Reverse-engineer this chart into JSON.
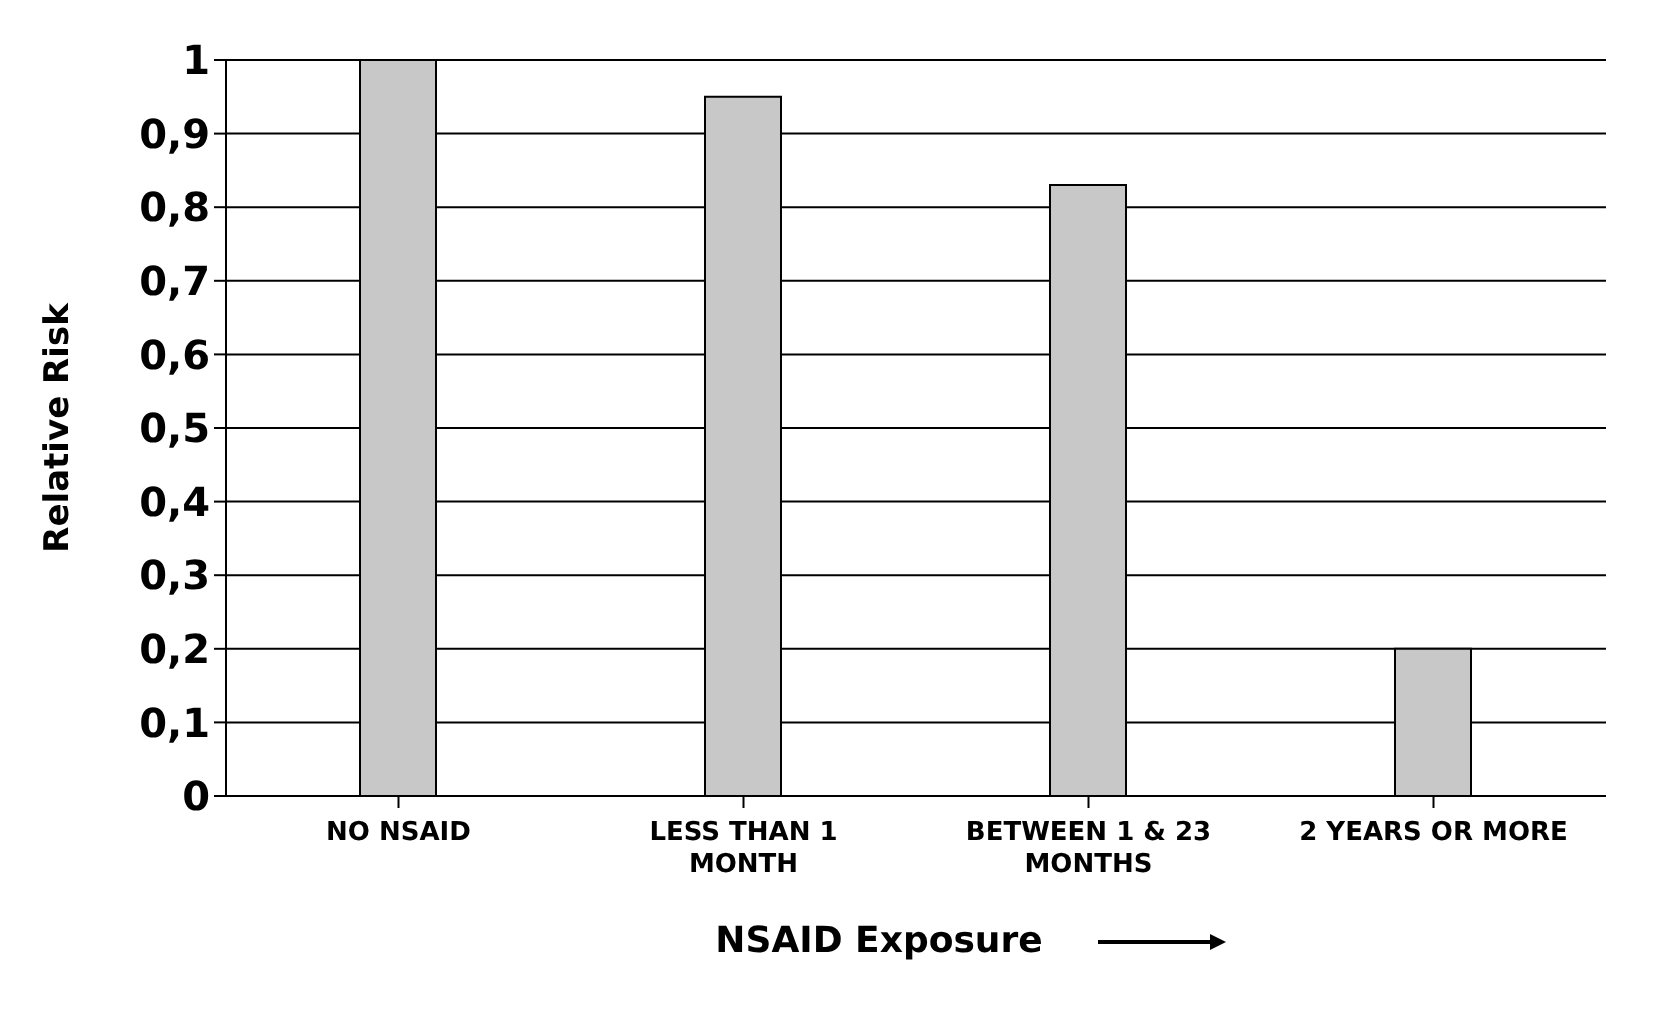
{
  "chart_data": {
    "type": "bar",
    "xlabel": "NSAID Exposure",
    "ylabel": "Relative Risk",
    "categories": [
      "NO NSAID",
      "LESS THAN 1 MONTH",
      "BETWEEN 1 & 23 MONTHS",
      "2 YEARS OR MORE"
    ],
    "values": [
      1.0,
      0.95,
      0.83,
      0.2
    ],
    "color": "#c8c8c8",
    "ylim": [
      0,
      1
    ],
    "yticks": [
      0,
      {
        "value": 0.1,
        "label": "0,1"
      },
      {
        "value": 0.2,
        "label": "0,2"
      },
      {
        "value": 0.3,
        "label": "0,3"
      },
      {
        "value": 0.4,
        "label": "0,4"
      },
      {
        "value": 0.5,
        "label": "0,5"
      },
      {
        "value": 0.6,
        "label": "0,6"
      },
      {
        "value": 0.7,
        "label": "0,7"
      },
      {
        "value": 0.8,
        "label": "0,8"
      },
      {
        "value": 0.9,
        "label": "0,9"
      },
      1
    ],
    "grid": "y",
    "legend": false
  }
}
